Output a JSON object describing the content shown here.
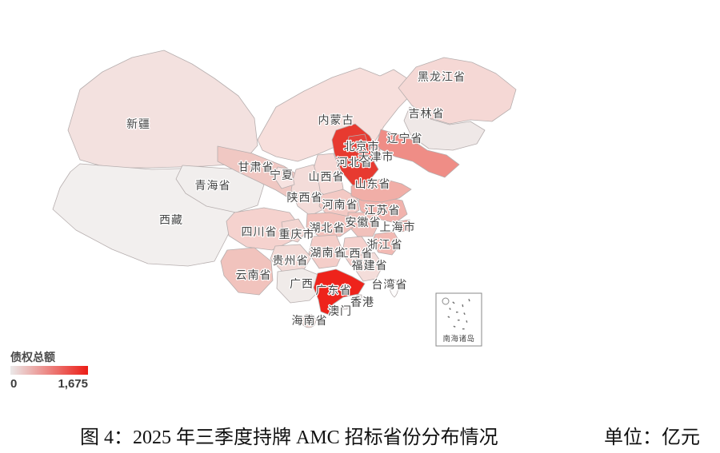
{
  "figure": {
    "caption": "图 4：2025 年三季度持牌 AMC 招标省份分布情况",
    "unit_label": "单位：亿元"
  },
  "legend": {
    "title": "债权总额",
    "min_label": "0",
    "max_label": "1,675",
    "gradient_start": "#ebe9e9",
    "gradient_end": "#ec1d16"
  },
  "inset": {
    "label": "南海诸岛"
  },
  "colors": {
    "border": "#b6aeae",
    "label_text": "#454545",
    "background": "#ffffff"
  },
  "chart_data": {
    "type": "heatmap",
    "subtype": "choropleth-map-of-china",
    "title": "图 4：2025 年三季度持牌 AMC 招标省份分布情况",
    "unit": "亿元",
    "colorbar": {
      "label": "债权总额",
      "min": 0,
      "max": 1675,
      "position": "bottom-left"
    },
    "values_are_estimates_from_color": true,
    "regions": [
      {
        "name": "内蒙古",
        "value_est": 150,
        "color": "#f7dfdc"
      },
      {
        "name": "新疆",
        "value_est": 140,
        "color": "#f3e1df"
      },
      {
        "name": "西藏",
        "value_est": 15,
        "color": "#f2efee"
      },
      {
        "name": "青海省",
        "value_est": 15,
        "color": "#f1eeed"
      },
      {
        "name": "甘肃省",
        "value_est": 320,
        "color": "#f0c8c3"
      },
      {
        "name": "黑龙江省",
        "value_est": 200,
        "color": "#f5d8d5"
      },
      {
        "name": "吉林省",
        "value_est": 60,
        "color": "#efe8e7"
      },
      {
        "name": "辽宁省",
        "value_est": 780,
        "color": "#ef8d86"
      },
      {
        "name": "山西省",
        "value_est": 200,
        "color": "#f5d9d6"
      },
      {
        "name": "陕西省",
        "value_est": 170,
        "color": "#f3dcd9"
      },
      {
        "name": "宁夏",
        "value_est": 130,
        "color": "#f7e3e1"
      },
      {
        "name": "河南省",
        "value_est": 300,
        "color": "#f3c9c4"
      },
      {
        "name": "江苏省",
        "value_est": 450,
        "color": "#f1b3ad"
      },
      {
        "name": "安徽省",
        "value_est": 360,
        "color": "#f1c1bb"
      },
      {
        "name": "四川省",
        "value_est": 240,
        "color": "#f5d2ce"
      },
      {
        "name": "湖北省",
        "value_est": 360,
        "color": "#f2c1bb"
      },
      {
        "name": "重庆市",
        "value_est": 230,
        "color": "#f3d5d1"
      },
      {
        "name": "浙江省",
        "value_est": 400,
        "color": "#f2bab4"
      },
      {
        "name": "江西省",
        "value_est": 240,
        "color": "#f5d1cd"
      },
      {
        "name": "湖南省",
        "value_est": 260,
        "color": "#f4cec9"
      },
      {
        "name": "贵州省",
        "value_est": 190,
        "color": "#f3dad6"
      },
      {
        "name": "云南省",
        "value_est": 350,
        "color": "#f1c3bd"
      },
      {
        "name": "广西",
        "value_est": 40,
        "color": "#f0ebe9"
      },
      {
        "name": "福建省",
        "value_est": 170,
        "color": "#f4ddda"
      },
      {
        "name": "山东省",
        "value_est": 480,
        "color": "#f1aea7"
      },
      {
        "name": "河北省",
        "value_est": 1675,
        "color": "#e73a30"
      },
      {
        "name": "广东省",
        "value_est": 1620,
        "color": "#ee231b"
      },
      {
        "name": "海南省",
        "value_est": 210,
        "color": "#f2d8d4"
      },
      {
        "name": "台湾省",
        "value_est": 0,
        "color": "#fdfcfc"
      },
      {
        "name": "北京市",
        "value_est": 1500,
        "color": "#e5423b"
      },
      {
        "name": "天津市",
        "value_est": 300,
        "color": "#f2c6c1"
      },
      {
        "name": "上海市",
        "value_est": 520,
        "color": "#efa69f"
      },
      {
        "name": "香港",
        "value_est": 0,
        "color": "#f1eeee"
      },
      {
        "name": "澳门",
        "value_est": 0,
        "color": "#f1eeee"
      }
    ]
  }
}
